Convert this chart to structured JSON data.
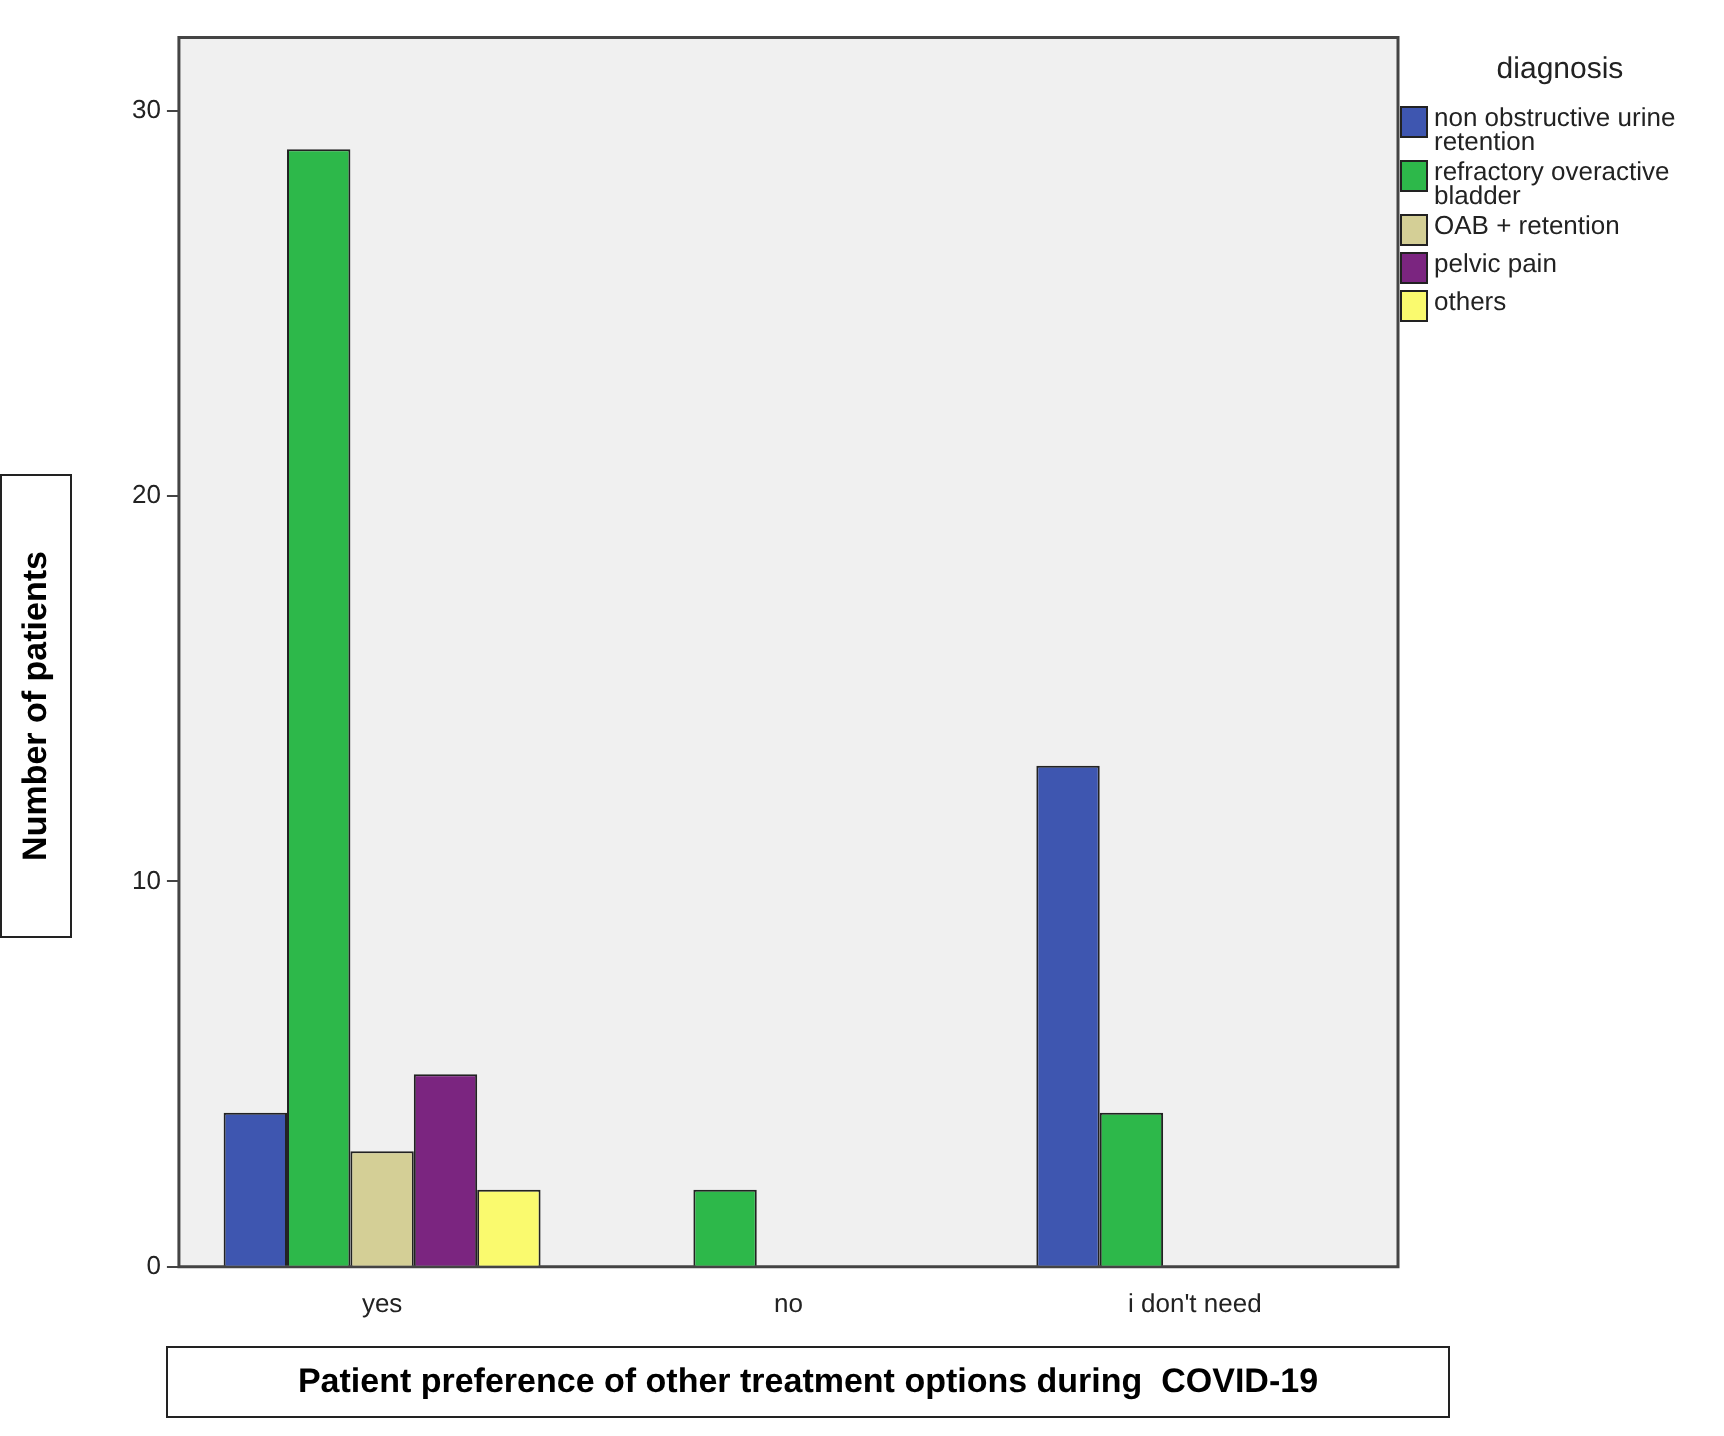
{
  "chart_data": {
    "type": "bar",
    "xlabel": "Patient preference of other treatment options during  COVID-19",
    "ylabel": "Number of patients",
    "legend_title": "diagnosis",
    "legend": "right",
    "grid": false,
    "categories": [
      "yes",
      "no",
      "i don't need"
    ],
    "ylim": [
      0,
      31.9
    ],
    "yticks": [
      0,
      10,
      20,
      30
    ],
    "series": [
      {
        "name": "non obstructive urine retention",
        "color": "#3e56b0",
        "values": [
          4,
          null,
          13
        ]
      },
      {
        "name": "refractory overactive bladder",
        "color": "#2db84a",
        "values": [
          29,
          2,
          4
        ]
      },
      {
        "name": "OAB + retention",
        "color": "#d4cf96",
        "values": [
          3,
          null,
          null
        ]
      },
      {
        "name": "pelvic pain",
        "color": "#7b2580",
        "values": [
          5,
          null,
          null
        ]
      },
      {
        "name": "others",
        "color": "#fafa6e",
        "values": [
          2,
          null,
          null
        ]
      }
    ]
  }
}
